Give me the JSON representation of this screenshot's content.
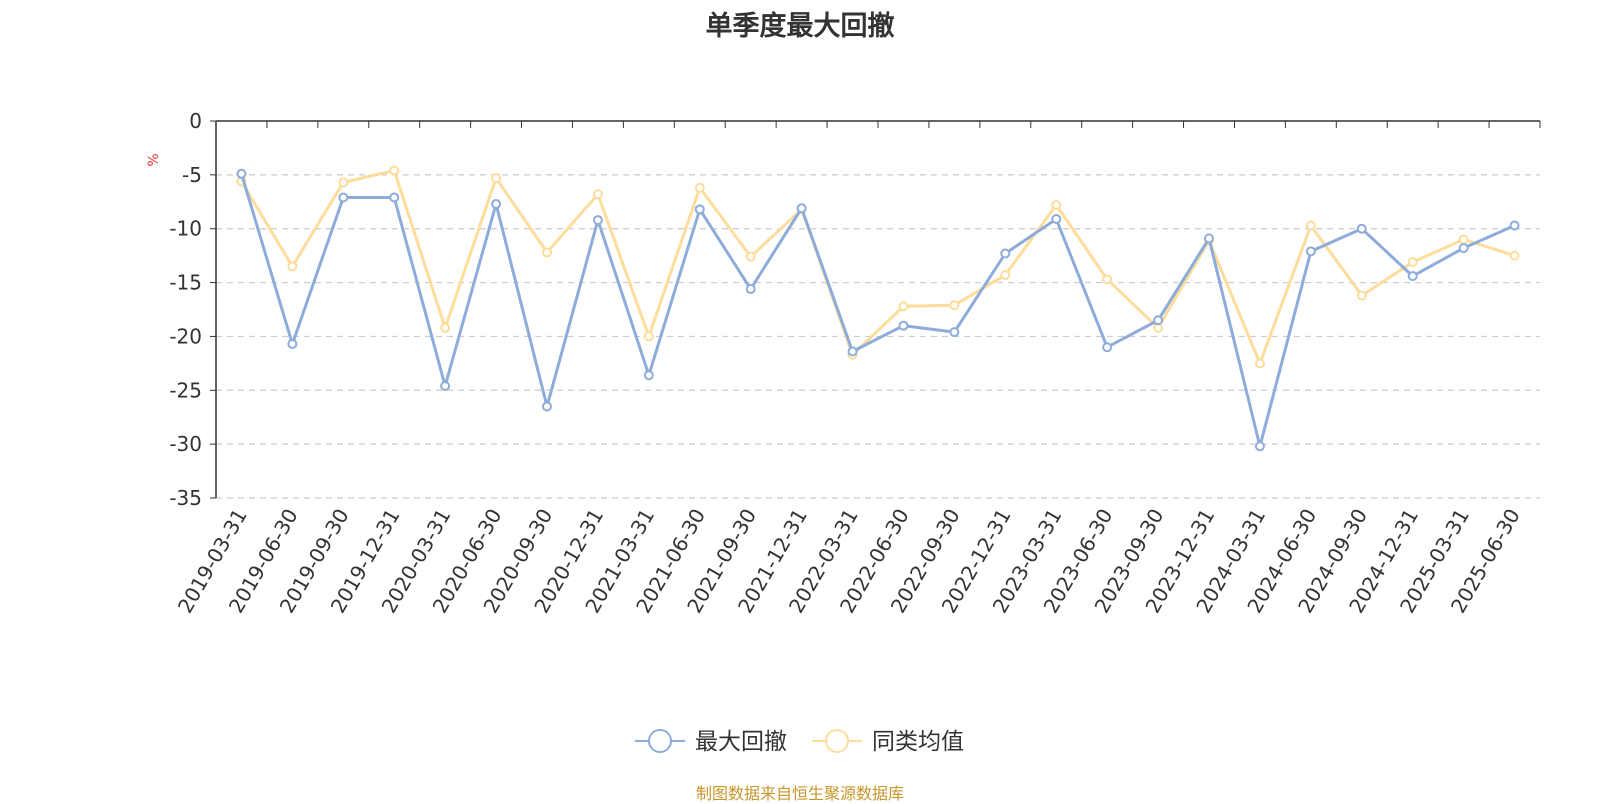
{
  "chart_data": {
    "type": "line",
    "title": "单季度最大回撤",
    "ylabel": "%",
    "ylim": [
      -35,
      0
    ],
    "yticks": [
      0,
      -5,
      -10,
      -15,
      -20,
      -25,
      -30,
      -35
    ],
    "grid": true,
    "legend_position": "bottom-center",
    "categories": [
      "2019-03-31",
      "2019-06-30",
      "2019-09-30",
      "2019-12-31",
      "2020-03-31",
      "2020-06-30",
      "2020-09-30",
      "2020-12-31",
      "2021-03-31",
      "2021-06-30",
      "2021-09-30",
      "2021-12-31",
      "2022-03-31",
      "2022-06-30",
      "2022-09-30",
      "2022-12-31",
      "2023-03-31",
      "2023-06-30",
      "2023-09-30",
      "2023-12-31",
      "2024-03-31",
      "2024-06-30",
      "2024-09-30",
      "2024-12-31",
      "2025-03-31",
      "2025-06-30"
    ],
    "series": [
      {
        "name": "最大回撤",
        "color": "#8eacd9",
        "values": [
          -4.9,
          -20.7,
          -7.1,
          -7.1,
          -24.6,
          -7.7,
          -26.5,
          -9.2,
          -23.6,
          -8.2,
          -15.6,
          -8.1,
          -21.4,
          -19.0,
          -19.6,
          -12.3,
          -9.1,
          -21.0,
          -18.5,
          -10.9,
          -30.2,
          -12.1,
          -10.0,
          -14.4,
          -11.8,
          -9.7
        ]
      },
      {
        "name": "同类均值",
        "color": "#fddc9c",
        "values": [
          -5.6,
          -13.5,
          -5.7,
          -4.6,
          -19.2,
          -5.3,
          -12.2,
          -6.8,
          -20.0,
          -6.2,
          -12.6,
          -8.2,
          -21.7,
          -17.2,
          -17.1,
          -14.3,
          -7.8,
          -14.7,
          -19.2,
          -11.1,
          -22.5,
          -9.7,
          -16.2,
          -13.1,
          -11.0,
          -12.5
        ]
      }
    ]
  },
  "source_text": "制图数据来自恒生聚源数据库"
}
